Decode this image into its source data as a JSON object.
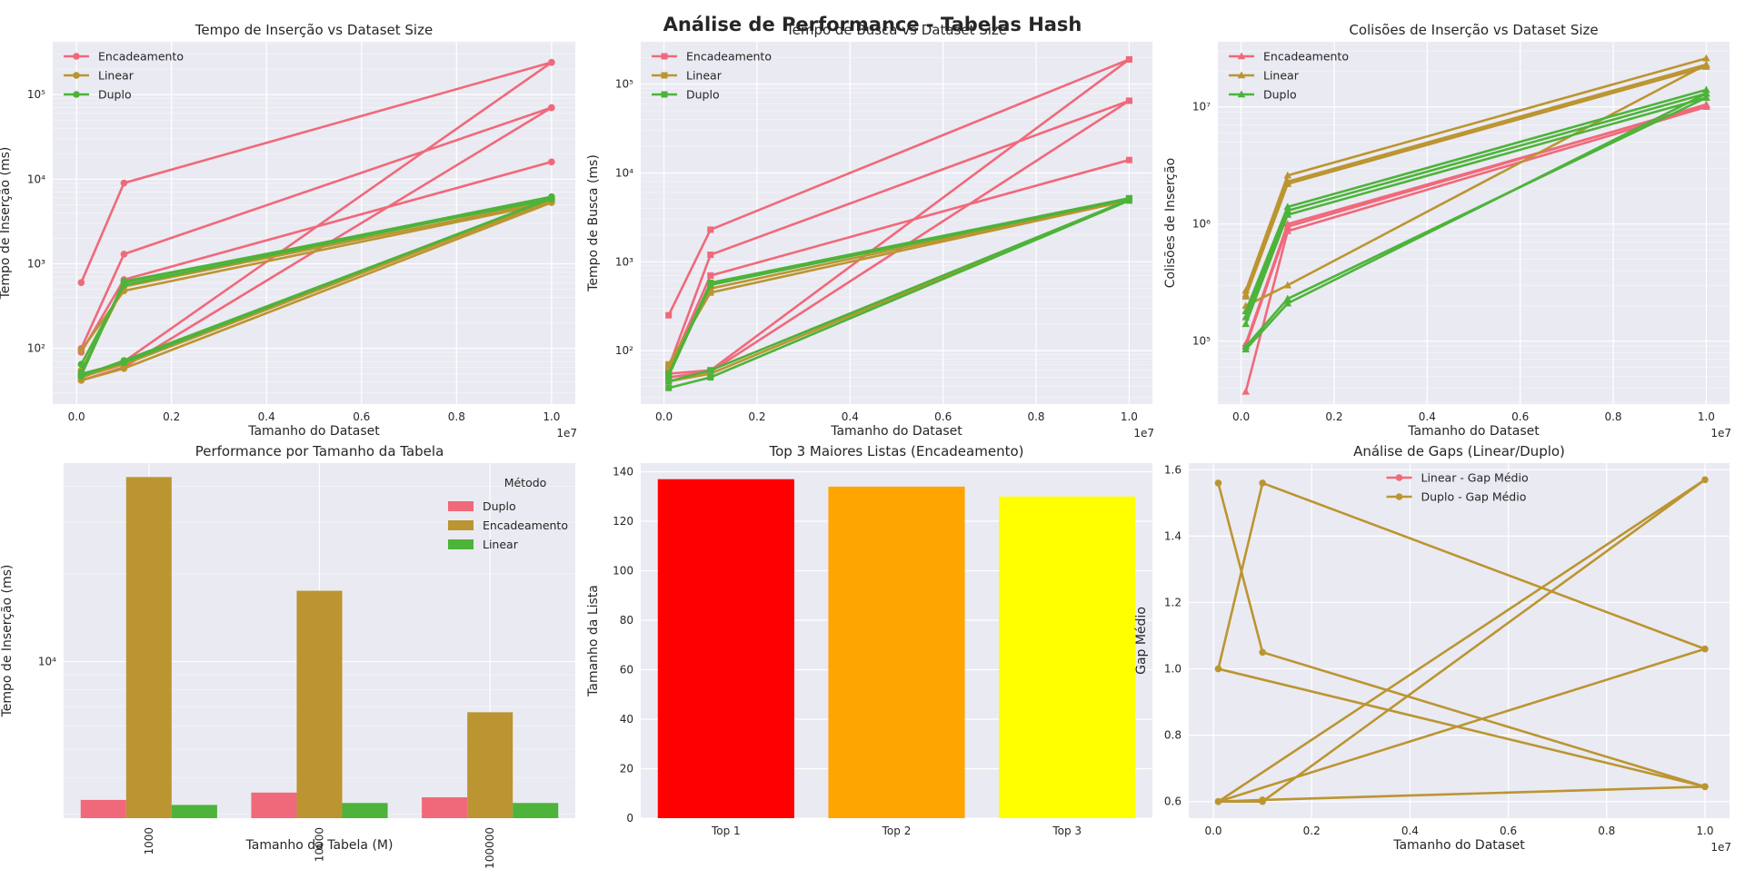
{
  "suptitle": "Análise de Performance - Tabelas Hash",
  "colors": {
    "encadeamento": "#f0697a",
    "linear": "#bb9531",
    "duplo": "#4db33a",
    "axes_bg": "#eaeaf2",
    "grid": "#ffffff",
    "top1": "#ff0000",
    "top2": "#ffa500",
    "top3": "#ffff00"
  },
  "chart_data": [
    {
      "type": "line",
      "title": "Tempo de Inserção vs Dataset Size",
      "xlabel": "Tamanho do Dataset",
      "ylabel": "Tempo de Inserção (ms)",
      "x_scale_label": "1e7",
      "y_scale": "log",
      "xlim": [
        -0.05,
        1.05
      ],
      "ylim": [
        22,
        420000
      ],
      "x_ticks": [
        0.0,
        0.2,
        0.4,
        0.6,
        0.8,
        1.0
      ],
      "x_tick_labels": [
        "0.0",
        "0.2",
        "0.4",
        "0.6",
        "0.8",
        "1.0"
      ],
      "y_ticks": [
        100,
        1000,
        10000,
        100000
      ],
      "y_tick_labels": [
        "10²",
        "10³",
        "10⁴",
        "10⁵"
      ],
      "marker": "circle",
      "legend": "upper-left",
      "legend_entries": [
        {
          "label": "Encadeamento",
          "series": "encadeamento"
        },
        {
          "label": "Linear",
          "series": "linear"
        },
        {
          "label": "Duplo",
          "series": "duplo"
        }
      ],
      "series": [
        {
          "group": "encadeamento",
          "x": [
            0.01,
            0.1,
            1.0
          ],
          "y": [
            600,
            9000,
            240000
          ]
        },
        {
          "group": "encadeamento",
          "x": [
            0.01,
            0.1,
            1.0
          ],
          "y": [
            100,
            1300,
            70000
          ]
        },
        {
          "group": "encadeamento",
          "x": [
            0.01,
            0.1,
            1.0
          ],
          "y": [
            90,
            650,
            16000
          ]
        },
        {
          "group": "encadeamento",
          "x": [
            0.01,
            0.1,
            1.0
          ],
          "y": [
            45,
            70,
            240000
          ]
        },
        {
          "group": "encadeamento",
          "x": [
            0.01,
            0.1,
            1.0
          ],
          "y": [
            42,
            60,
            70000
          ]
        },
        {
          "group": "linear",
          "x": [
            0.01,
            0.1,
            1.0
          ],
          "y": [
            95,
            480,
            5300
          ]
        },
        {
          "group": "linear",
          "x": [
            0.01,
            0.1,
            1.0
          ],
          "y": [
            55,
            540,
            5500
          ]
        },
        {
          "group": "linear",
          "x": [
            0.01,
            0.1,
            1.0
          ],
          "y": [
            42,
            58,
            5300
          ]
        },
        {
          "group": "linear",
          "x": [
            0.01,
            0.1,
            1.0
          ],
          "y": [
            46,
            65,
            5600
          ]
        },
        {
          "group": "duplo",
          "x": [
            0.01,
            0.1,
            1.0
          ],
          "y": [
            65,
            560,
            6000
          ]
        },
        {
          "group": "duplo",
          "x": [
            0.01,
            0.1,
            1.0
          ],
          "y": [
            52,
            600,
            6200
          ]
        },
        {
          "group": "duplo",
          "x": [
            0.01,
            0.1,
            1.0
          ],
          "y": [
            48,
            620,
            5800
          ]
        },
        {
          "group": "duplo",
          "x": [
            0.01,
            0.1,
            1.0
          ],
          "y": [
            50,
            68,
            6000
          ]
        },
        {
          "group": "duplo",
          "x": [
            0.01,
            0.1,
            1.0
          ],
          "y": [
            47,
            72,
            5900
          ]
        }
      ]
    },
    {
      "type": "line",
      "title": "Tempo de Busca vs Dataset Size",
      "xlabel": "Tamanho do Dataset",
      "ylabel": "Tempo de Busca (ms)",
      "x_scale_label": "1e7",
      "y_scale": "log",
      "xlim": [
        -0.05,
        1.05
      ],
      "ylim": [
        25,
        300000
      ],
      "x_ticks": [
        0.0,
        0.2,
        0.4,
        0.6,
        0.8,
        1.0
      ],
      "x_tick_labels": [
        "0.0",
        "0.2",
        "0.4",
        "0.6",
        "0.8",
        "1.0"
      ],
      "y_ticks": [
        100,
        1000,
        10000,
        100000
      ],
      "y_tick_labels": [
        "10²",
        "10³",
        "10⁴",
        "10⁵"
      ],
      "marker": "square",
      "legend": "upper-left",
      "legend_entries": [
        {
          "label": "Encadeamento",
          "series": "encadeamento"
        },
        {
          "label": "Linear",
          "series": "linear"
        },
        {
          "label": "Duplo",
          "series": "duplo"
        }
      ],
      "series": [
        {
          "group": "encadeamento",
          "x": [
            0.01,
            0.1,
            1.0
          ],
          "y": [
            250,
            2300,
            190000
          ]
        },
        {
          "group": "encadeamento",
          "x": [
            0.01,
            0.1,
            1.0
          ],
          "y": [
            65,
            1200,
            65000
          ]
        },
        {
          "group": "encadeamento",
          "x": [
            0.01,
            0.1,
            1.0
          ],
          "y": [
            60,
            700,
            14000
          ]
        },
        {
          "group": "encadeamento",
          "x": [
            0.01,
            0.1,
            1.0
          ],
          "y": [
            55,
            60,
            190000
          ]
        },
        {
          "group": "encadeamento",
          "x": [
            0.01,
            0.1,
            1.0
          ],
          "y": [
            50,
            58,
            65000
          ]
        },
        {
          "group": "linear",
          "x": [
            0.01,
            0.1,
            1.0
          ],
          "y": [
            70,
            450,
            4900
          ]
        },
        {
          "group": "linear",
          "x": [
            0.01,
            0.1,
            1.0
          ],
          "y": [
            60,
            500,
            5000
          ]
        },
        {
          "group": "linear",
          "x": [
            0.01,
            0.1,
            1.0
          ],
          "y": [
            45,
            55,
            5000
          ]
        },
        {
          "group": "duplo",
          "x": [
            0.01,
            0.1,
            1.0
          ],
          "y": [
            55,
            580,
            5200
          ]
        },
        {
          "group": "duplo",
          "x": [
            0.01,
            0.1,
            1.0
          ],
          "y": [
            52,
            550,
            5100
          ]
        },
        {
          "group": "duplo",
          "x": [
            0.01,
            0.1,
            1.0
          ],
          "y": [
            38,
            50,
            4900
          ]
        },
        {
          "group": "duplo",
          "x": [
            0.01,
            0.1,
            1.0
          ],
          "y": [
            45,
            60,
            5000
          ]
        }
      ]
    },
    {
      "type": "line",
      "title": "Colisões de Inserção vs Dataset Size",
      "xlabel": "Tamanho do Dataset",
      "ylabel": "Colisões de Inserção",
      "x_scale_label": "1e7",
      "y_scale": "log",
      "xlim": [
        -0.05,
        1.05
      ],
      "ylim": [
        29000,
        36000000
      ],
      "x_ticks": [
        0.0,
        0.2,
        0.4,
        0.6,
        0.8,
        1.0
      ],
      "x_tick_labels": [
        "0.0",
        "0.2",
        "0.4",
        "0.6",
        "0.8",
        "1.0"
      ],
      "y_ticks": [
        100000,
        1000000,
        10000000
      ],
      "y_tick_labels": [
        "10⁵",
        "10⁶",
        "10⁷"
      ],
      "marker": "triangle",
      "legend": "upper-left",
      "legend_entries": [
        {
          "label": "Encadeamento",
          "series": "encadeamento"
        },
        {
          "label": "Linear",
          "series": "linear"
        },
        {
          "label": "Duplo",
          "series": "duplo"
        }
      ],
      "series": [
        {
          "group": "encadeamento",
          "x": [
            0.01,
            0.1,
            1.0
          ],
          "y": [
            37000,
            870000,
            10000000
          ]
        },
        {
          "group": "encadeamento",
          "x": [
            0.01,
            0.1,
            1.0
          ],
          "y": [
            90000,
            950000,
            10500000
          ]
        },
        {
          "group": "encadeamento",
          "x": [
            0.01,
            0.1,
            1.0
          ],
          "y": [
            95000,
            1000000,
            10300000
          ]
        },
        {
          "group": "linear",
          "x": [
            0.01,
            0.1,
            1.0
          ],
          "y": [
            270000,
            2600000,
            26000000
          ]
        },
        {
          "group": "linear",
          "x": [
            0.01,
            0.1,
            1.0
          ],
          "y": [
            250000,
            2300000,
            23000000
          ]
        },
        {
          "group": "linear",
          "x": [
            0.01,
            0.1,
            1.0
          ],
          "y": [
            240000,
            2200000,
            22000000
          ]
        },
        {
          "group": "linear",
          "x": [
            0.01,
            0.1,
            1.0
          ],
          "y": [
            200000,
            300000,
            23000000
          ]
        },
        {
          "group": "duplo",
          "x": [
            0.01,
            0.1,
            1.0
          ],
          "y": [
            180000,
            1400000,
            14000000
          ]
        },
        {
          "group": "duplo",
          "x": [
            0.01,
            0.1,
            1.0
          ],
          "y": [
            160000,
            1300000,
            13000000
          ]
        },
        {
          "group": "duplo",
          "x": [
            0.01,
            0.1,
            1.0
          ],
          "y": [
            140000,
            1200000,
            12000000
          ]
        },
        {
          "group": "duplo",
          "x": [
            0.01,
            0.1,
            1.0
          ],
          "y": [
            90000,
            230000,
            12000000
          ]
        },
        {
          "group": "duplo",
          "x": [
            0.01,
            0.1,
            1.0
          ],
          "y": [
            85000,
            210000,
            13000000
          ]
        }
      ]
    },
    {
      "type": "bar",
      "title": "Performance por Tamanho da Tabela",
      "xlabel": "Tamanho da Tabela (M)",
      "ylabel": "Tempo de Inserção (ms)",
      "y_scale": "log",
      "ylim": [
        2900,
        48000
      ],
      "y_ticks": [
        10000
      ],
      "y_tick_labels": [
        "10⁴"
      ],
      "categories": [
        "1000",
        "10000",
        "100000"
      ],
      "legend": "upper-right",
      "legend_title": "Método",
      "series": [
        {
          "name": "Duplo",
          "color_key": "duplo_bar",
          "values": [
            3350,
            3550,
            3420
          ]
        },
        {
          "name": "Encadeamento",
          "color_key": "encadeamento_bar",
          "values": [
            43000,
            17500,
            6700
          ]
        },
        {
          "name": "Linear",
          "color_key": "linear_bar",
          "values": [
            3220,
            3270,
            3270
          ]
        }
      ]
    },
    {
      "type": "bar",
      "title": "Top 3 Maiores Listas (Encadeamento)",
      "xlabel": "",
      "ylabel": "Tamanho da Lista",
      "ylim": [
        0,
        143.5
      ],
      "y_ticks": [
        0,
        20,
        40,
        60,
        80,
        100,
        120,
        140
      ],
      "y_tick_labels": [
        "0",
        "20",
        "40",
        "60",
        "80",
        "100",
        "120",
        "140"
      ],
      "categories": [
        "Top 1",
        "Top 2",
        "Top 3"
      ],
      "values": [
        137,
        134,
        130
      ],
      "bar_colors": [
        "#ff0000",
        "#ffa500",
        "#ffff00"
      ]
    },
    {
      "type": "line",
      "title": "Análise de Gaps (Linear/Duplo)",
      "xlabel": "Tamanho do Dataset",
      "ylabel": "Gap Médio",
      "x_scale_label": "1e7",
      "xlim": [
        -0.05,
        1.05
      ],
      "ylim": [
        0.55,
        1.62
      ],
      "x_ticks": [
        0.0,
        0.2,
        0.4,
        0.6,
        0.8,
        1.0
      ],
      "x_tick_labels": [
        "0.0",
        "0.2",
        "0.4",
        "0.6",
        "0.8",
        "1.0"
      ],
      "y_ticks": [
        0.6,
        0.8,
        1.0,
        1.2,
        1.4,
        1.6
      ],
      "y_tick_labels": [
        "0.6",
        "0.8",
        "1.0",
        "1.2",
        "1.4",
        "1.6"
      ],
      "marker": "circle",
      "legend": "upper-center",
      "legend_entries": [
        {
          "label": "Linear - Gap Médio",
          "series": "encadeamento"
        },
        {
          "label": "Duplo - Gap Médio",
          "series": "linear"
        }
      ],
      "series": [
        {
          "group": "linear",
          "x": [
            0.01,
            0.1,
            1.0,
            0.01,
            0.1,
            1.0,
            0.01,
            0.1,
            1.0,
            0.01,
            0.1,
            1.0
          ],
          "y": [
            1.56,
            1.05,
            0.645,
            1.0,
            1.56,
            1.06,
            0.6,
            0.6,
            1.57,
            0.6,
            0.605,
            0.645
          ]
        }
      ]
    }
  ],
  "bar_colors": {
    "duplo_bar": "#f0697a",
    "encadeamento_bar": "#bb9531",
    "linear_bar": "#4db33a"
  }
}
